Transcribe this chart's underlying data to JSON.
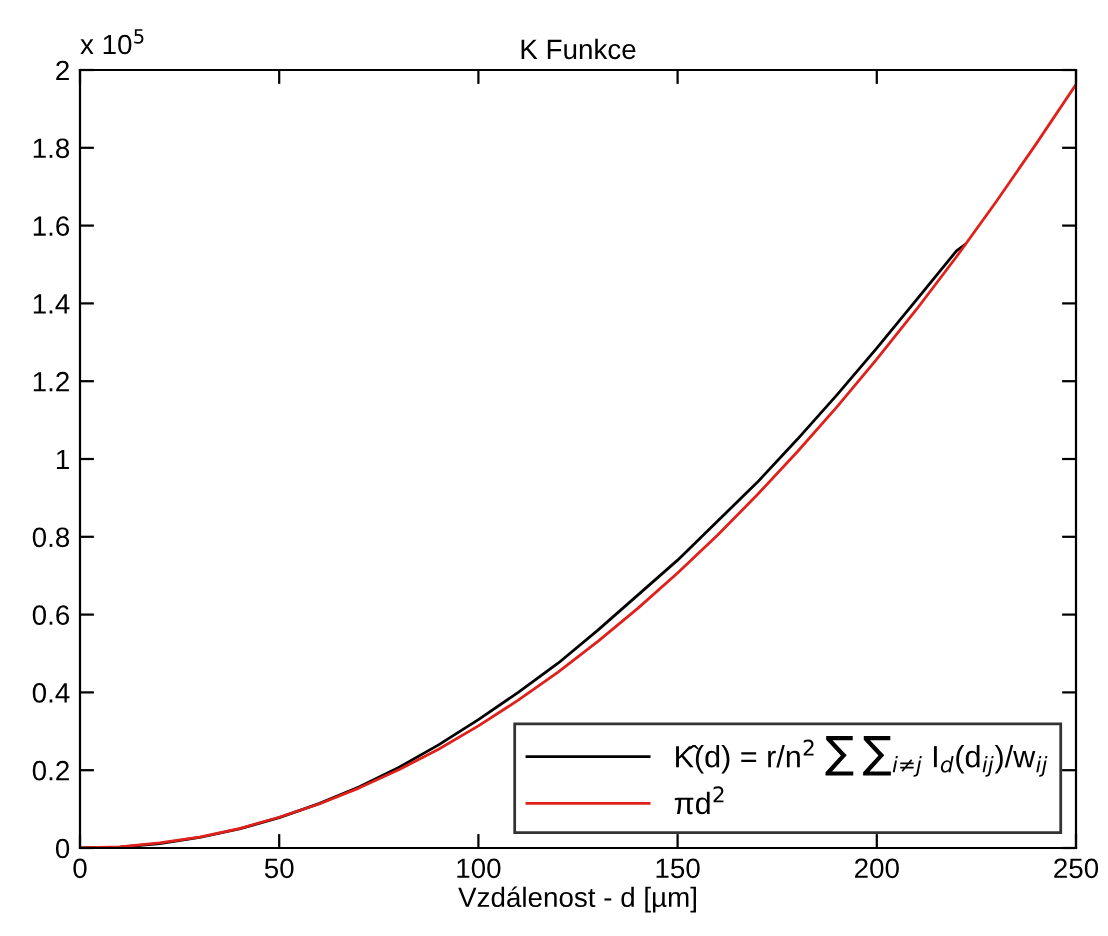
{
  "chart_data": {
    "type": "line",
    "title": "K Funkce",
    "xlabel": "Vzdálenost - d [µm]",
    "xlim": [
      0,
      250
    ],
    "xticks": [
      0,
      50,
      100,
      150,
      200,
      250
    ],
    "ylim": [
      0,
      2
    ],
    "yticks": [
      0,
      0.2,
      0.4,
      0.6,
      0.8,
      1,
      1.2,
      1.4,
      1.6,
      1.8,
      2
    ],
    "annotations": [
      "x 10$^{5}$"
    ],
    "legend": "bottom right",
    "grid": false,
    "series": [
      {
        "name": "K̂(d) = r/n$^{2}$ ∑ ∑$_{i≠j}$ I$_{d}$(d$_{ij}$)/w$_{ij}$",
        "color": "#000000",
        "x": [
          0,
          10,
          20,
          30,
          40,
          50,
          60,
          70,
          80,
          90,
          100,
          110,
          120,
          130,
          140,
          150,
          160,
          170,
          180,
          190,
          200,
          210,
          220,
          222
        ],
        "values": [
          0,
          0.002,
          0.011,
          0.027,
          0.049,
          0.078,
          0.114,
          0.157,
          0.207,
          0.265,
          0.33,
          0.4,
          0.475,
          0.56,
          0.65,
          0.74,
          0.84,
          0.94,
          1.05,
          1.165,
          1.285,
          1.41,
          1.535,
          1.55
        ]
      },
      {
        "name": "πd$^{2}$",
        "color": "#e0201b",
        "x": [
          0,
          10,
          20,
          30,
          40,
          50,
          60,
          70,
          80,
          90,
          100,
          110,
          120,
          130,
          140,
          150,
          160,
          170,
          180,
          190,
          200,
          210,
          220,
          230,
          240,
          250
        ],
        "values": [
          0,
          0.003,
          0.013,
          0.028,
          0.05,
          0.079,
          0.113,
          0.154,
          0.201,
          0.254,
          0.314,
          0.38,
          0.452,
          0.531,
          0.616,
          0.707,
          0.804,
          0.908,
          1.018,
          1.134,
          1.257,
          1.385,
          1.52,
          1.662,
          1.81,
          1.963
        ]
      }
    ]
  }
}
